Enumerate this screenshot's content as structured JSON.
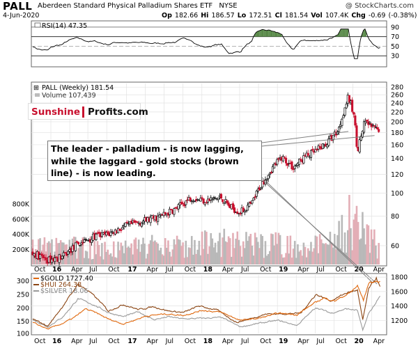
{
  "header": {
    "symbol": "PALL",
    "name": "Aberdeen Standard Physical Palladium Shares ETF",
    "exchange": "NYSE",
    "date": "4-Jun-2020",
    "credit": "@ StockCharts.com",
    "open_label": "Op",
    "open": "182.66",
    "high_label": "Hi",
    "high": "186.57",
    "low_label": "Lo",
    "low": "172.51",
    "close_label": "Cl",
    "close": "181.54",
    "vol_label": "Vol",
    "vol": "107.4K",
    "chg_label": "Chg",
    "chg": "-0.69 (-0.38%)",
    "chg_marker": "▼"
  },
  "colors": {
    "up": "#000000",
    "down": "#c8102e",
    "volume_up": "#b9b9b9",
    "volume_down": "#e3aeb6",
    "gold": "#e06a10",
    "hui": "#8b4513",
    "silver": "#9a9a9a",
    "rsi_fill": "#5a8a4a",
    "annotation_line": "#808080"
  },
  "rsi": {
    "label": "RSI(14) 47.35",
    "value": 47.35,
    "ylim": [
      10,
      100
    ],
    "ticks": [
      "90",
      "70",
      "50",
      "30"
    ],
    "tick_values": [
      90,
      70,
      50,
      30
    ]
  },
  "logo": {
    "part1": "Sunshine",
    "part2": "Profits.com"
  },
  "annotation": {
    "text": "The leader - palladium - is now lagging, while the laggard - gold stocks (brown line) - is now leading."
  },
  "chart_data": [
    {
      "type": "candlestick",
      "title": "PALL (Weekly) 181.54",
      "volume_label": "Volume 107,439",
      "ylim": [
        50,
        290
      ],
      "y_scale": "log",
      "yticks": [
        280,
        260,
        240,
        220,
        200,
        180,
        160,
        140,
        120,
        100,
        80,
        60
      ],
      "volume_ticks": [
        "800K",
        "600K",
        "400K",
        "200K"
      ],
      "volume_tick_values": [
        800000,
        600000,
        400000,
        200000
      ],
      "x_ticks": [
        "Oct",
        "16",
        "Apr",
        "Jul",
        "Oct",
        "17",
        "Apr",
        "Jul",
        "Oct",
        "18",
        "Apr",
        "Jul",
        "Oct",
        "19",
        "Apr",
        "Jul",
        "Oct",
        "20",
        "Apr"
      ],
      "x_tick_positions": [
        0.0,
        0.24,
        0.49,
        0.73,
        0.98,
        1.24,
        1.49,
        1.74,
        1.99,
        2.24,
        2.49,
        2.74,
        2.99,
        3.24,
        3.49,
        3.74,
        3.99,
        4.24,
        4.49
      ],
      "series_close": [
        {
          "t": 0.0,
          "v": 56
        },
        {
          "t": 0.2,
          "v": 52
        },
        {
          "t": 0.4,
          "v": 54
        },
        {
          "t": 0.6,
          "v": 61
        },
        {
          "t": 0.85,
          "v": 66
        },
        {
          "t": 1.0,
          "v": 67
        },
        {
          "t": 1.2,
          "v": 72
        },
        {
          "t": 1.45,
          "v": 76
        },
        {
          "t": 1.7,
          "v": 80
        },
        {
          "t": 1.9,
          "v": 86
        },
        {
          "t": 2.1,
          "v": 96
        },
        {
          "t": 2.3,
          "v": 93
        },
        {
          "t": 2.5,
          "v": 96
        },
        {
          "t": 2.6,
          "v": 88
        },
        {
          "t": 2.75,
          "v": 83
        },
        {
          "t": 2.9,
          "v": 90
        },
        {
          "t": 3.0,
          "v": 105
        },
        {
          "t": 3.15,
          "v": 125
        },
        {
          "t": 3.3,
          "v": 142
        },
        {
          "t": 3.45,
          "v": 128
        },
        {
          "t": 3.6,
          "v": 142
        },
        {
          "t": 3.75,
          "v": 150
        },
        {
          "t": 3.9,
          "v": 163
        },
        {
          "t": 4.05,
          "v": 185
        },
        {
          "t": 4.18,
          "v": 255
        },
        {
          "t": 4.25,
          "v": 215
        },
        {
          "t": 4.3,
          "v": 150
        },
        {
          "t": 4.4,
          "v": 200
        },
        {
          "t": 4.5,
          "v": 190
        },
        {
          "t": 4.6,
          "v": 181.54
        }
      ],
      "volume_level": [
        {
          "t": 0.0,
          "v": 180000
        },
        {
          "t": 0.5,
          "v": 200000
        },
        {
          "t": 1.0,
          "v": 170000
        },
        {
          "t": 1.5,
          "v": 200000
        },
        {
          "t": 2.0,
          "v": 220000
        },
        {
          "t": 2.5,
          "v": 250000
        },
        {
          "t": 3.0,
          "v": 230000
        },
        {
          "t": 3.5,
          "v": 220000
        },
        {
          "t": 4.0,
          "v": 230000
        },
        {
          "t": 4.2,
          "v": 500000
        },
        {
          "t": 4.6,
          "v": 180000
        }
      ]
    },
    {
      "type": "line",
      "series": [
        {
          "name": "$GOLD",
          "label": "$GOLD 1727.40",
          "color": "#e06a10",
          "points": [
            {
              "t": 0.0,
              "v": 1170
            },
            {
              "t": 0.2,
              "v": 1080
            },
            {
              "t": 0.4,
              "v": 1160
            },
            {
              "t": 0.55,
              "v": 1240
            },
            {
              "t": 0.7,
              "v": 1360
            },
            {
              "t": 0.85,
              "v": 1300
            },
            {
              "t": 1.0,
              "v": 1220
            },
            {
              "t": 1.2,
              "v": 1150
            },
            {
              "t": 1.5,
              "v": 1260
            },
            {
              "t": 1.75,
              "v": 1290
            },
            {
              "t": 2.0,
              "v": 1270
            },
            {
              "t": 2.25,
              "v": 1340
            },
            {
              "t": 2.5,
              "v": 1310
            },
            {
              "t": 2.75,
              "v": 1200
            },
            {
              "t": 3.0,
              "v": 1230
            },
            {
              "t": 3.25,
              "v": 1300
            },
            {
              "t": 3.5,
              "v": 1280
            },
            {
              "t": 3.7,
              "v": 1420
            },
            {
              "t": 3.85,
              "v": 1510
            },
            {
              "t": 4.0,
              "v": 1470
            },
            {
              "t": 4.2,
              "v": 1580
            },
            {
              "t": 4.3,
              "v": 1680
            },
            {
              "t": 4.38,
              "v": 1480
            },
            {
              "t": 4.45,
              "v": 1720
            },
            {
              "t": 4.55,
              "v": 1740
            },
            {
              "t": 4.6,
              "v": 1727.4
            }
          ]
        },
        {
          "name": "$HUI",
          "label": "$HUI 264.38",
          "color": "#8b4513",
          "points": [
            {
              "t": 0.0,
              "v": 1220
            },
            {
              "t": 0.2,
              "v": 1120
            },
            {
              "t": 0.4,
              "v": 1400
            },
            {
              "t": 0.6,
              "v": 1700
            },
            {
              "t": 0.75,
              "v": 1600
            },
            {
              "t": 0.9,
              "v": 1450
            },
            {
              "t": 1.0,
              "v": 1330
            },
            {
              "t": 1.2,
              "v": 1420
            },
            {
              "t": 1.4,
              "v": 1350
            },
            {
              "t": 1.6,
              "v": 1390
            },
            {
              "t": 1.8,
              "v": 1330
            },
            {
              "t": 2.0,
              "v": 1310
            },
            {
              "t": 2.2,
              "v": 1400
            },
            {
              "t": 2.45,
              "v": 1340
            },
            {
              "t": 2.7,
              "v": 1170
            },
            {
              "t": 2.9,
              "v": 1230
            },
            {
              "t": 3.1,
              "v": 1290
            },
            {
              "t": 3.3,
              "v": 1290
            },
            {
              "t": 3.55,
              "v": 1300
            },
            {
              "t": 3.75,
              "v": 1560
            },
            {
              "t": 3.95,
              "v": 1470
            },
            {
              "t": 4.15,
              "v": 1580
            },
            {
              "t": 4.3,
              "v": 1620
            },
            {
              "t": 4.37,
              "v": 1200
            },
            {
              "t": 4.45,
              "v": 1640
            },
            {
              "t": 4.55,
              "v": 1790
            },
            {
              "t": 4.6,
              "v": 1660
            }
          ]
        },
        {
          "name": "$SILVER",
          "label": "$SILVER 18.06",
          "color": "#9a9a9a",
          "points": [
            {
              "t": 0.0,
              "v": 1210
            },
            {
              "t": 0.2,
              "v": 1110
            },
            {
              "t": 0.4,
              "v": 1250
            },
            {
              "t": 0.6,
              "v": 1500
            },
            {
              "t": 0.8,
              "v": 1420
            },
            {
              "t": 1.0,
              "v": 1310
            },
            {
              "t": 1.2,
              "v": 1250
            },
            {
              "t": 1.4,
              "v": 1320
            },
            {
              "t": 1.6,
              "v": 1210
            },
            {
              "t": 1.8,
              "v": 1250
            },
            {
              "t": 2.0,
              "v": 1220
            },
            {
              "t": 2.25,
              "v": 1230
            },
            {
              "t": 2.5,
              "v": 1240
            },
            {
              "t": 2.75,
              "v": 1110
            },
            {
              "t": 3.0,
              "v": 1160
            },
            {
              "t": 3.25,
              "v": 1200
            },
            {
              "t": 3.5,
              "v": 1130
            },
            {
              "t": 3.75,
              "v": 1380
            },
            {
              "t": 3.95,
              "v": 1300
            },
            {
              "t": 4.15,
              "v": 1360
            },
            {
              "t": 4.3,
              "v": 1340
            },
            {
              "t": 4.37,
              "v": 1060
            },
            {
              "t": 4.45,
              "v": 1300
            },
            {
              "t": 4.55,
              "v": 1450
            },
            {
              "t": 4.6,
              "v": 1530
            }
          ]
        }
      ],
      "ylim": [
        1020,
        1830
      ],
      "yticks": [
        1800,
        1600,
        1400,
        1200
      ],
      "left_ticks": [
        "300",
        "250",
        "200",
        "150",
        "100"
      ],
      "left_tick_values": [
        1750,
        1560,
        1370,
        1190,
        1020
      ],
      "x_ticks": [
        "Oct",
        "16",
        "Apr",
        "Jul",
        "Oct",
        "17",
        "Apr",
        "Jul",
        "Oct",
        "18",
        "Apr",
        "Jul",
        "Oct",
        "19",
        "Apr",
        "Jul",
        "Oct",
        "20",
        "Apr"
      ],
      "x_tick_positions": [
        0.0,
        0.24,
        0.49,
        0.73,
        0.98,
        1.24,
        1.49,
        1.74,
        1.99,
        2.24,
        2.49,
        2.74,
        2.99,
        3.24,
        3.49,
        3.74,
        3.99,
        4.24,
        4.49
      ]
    }
  ]
}
